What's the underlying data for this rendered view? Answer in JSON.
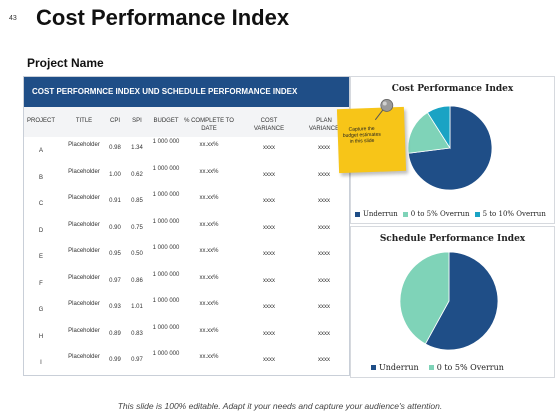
{
  "slide_number": "43",
  "title": "Cost Performance Index",
  "subtitle": "Project Name",
  "table": {
    "header": "COST PERFORMNCE INDEX UND SCHEDULE PERFORMANCE INDEX",
    "columns": [
      "PROJECT",
      "TITLE",
      "CPI",
      "SPI",
      "BUDGET",
      "% COMPLETE TO DATE",
      "COST VARIANCE",
      "PLAN VARIANCE"
    ],
    "rows": [
      [
        "A",
        "Placeholder",
        "0.98",
        "1.34",
        "1 000 000",
        "xx.xx%",
        "xxxx",
        "xxxx"
      ],
      [
        "B",
        "Placeholder",
        "1.00",
        "0.62",
        "1 000 000",
        "xx.xx%",
        "xxxx",
        "xxxx"
      ],
      [
        "C",
        "Placeholder",
        "0.91",
        "0.85",
        "1 000 000",
        "xx.xx%",
        "xxxx",
        "xxxx"
      ],
      [
        "D",
        "Placeholder",
        "0.90",
        "0.75",
        "1 000 000",
        "xx.xx%",
        "xxxx",
        "xxxx"
      ],
      [
        "E",
        "Placeholder",
        "0.95",
        "0.50",
        "1 000 000",
        "xx.xx%",
        "xxxx",
        "xxxx"
      ],
      [
        "F",
        "Placeholder",
        "0.97",
        "0.86",
        "1 000 000",
        "xx.xx%",
        "xxxx",
        "xxxx"
      ],
      [
        "G",
        "Placeholder",
        "0.93",
        "1.01",
        "1 000 000",
        "xx.xx%",
        "xxxx",
        "xxxx"
      ],
      [
        "H",
        "Placeholder",
        "0.89",
        "0.83",
        "1 000 000",
        "xx.xx%",
        "xxxx",
        "xxxx"
      ],
      [
        "I",
        "Placeholder",
        "0.99",
        "0.97",
        "1 000 000",
        "xx.xx%",
        "xxxx",
        "xxxx"
      ]
    ]
  },
  "sticky_note": "Capture the budget estimates in this slide",
  "footer": "This slide is 100% editable. Adapt it your needs and capture your audience's attention.",
  "colors": {
    "navy": "#1f4e87",
    "mint": "#7fd3b8",
    "teal": "#1aa3c4",
    "sticky": "#f7c518"
  },
  "chart_data": [
    {
      "type": "pie",
      "title": "Cost Performance Index",
      "categories": [
        "Underrun",
        "0 to 5% Overrun",
        "5 to 10% Overrun"
      ],
      "values": [
        73,
        18,
        9
      ],
      "colors": [
        "#1f4e87",
        "#7fd3b8",
        "#1aa3c4"
      ],
      "legend": "bottom"
    },
    {
      "type": "pie",
      "title": "Schedule Performance Index",
      "categories": [
        "Underrun",
        "0 to 5% Overrun"
      ],
      "values": [
        58,
        42
      ],
      "colors": [
        "#1f4e87",
        "#7fd3b8"
      ],
      "legend": "bottom"
    }
  ]
}
